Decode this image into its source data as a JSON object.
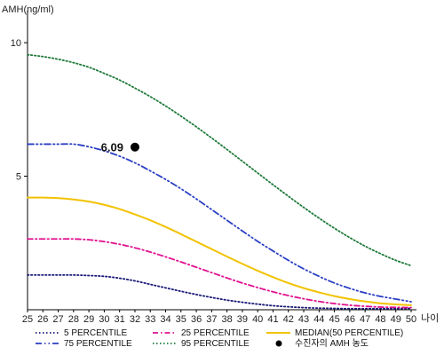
{
  "chart_data": {
    "type": "line",
    "ylabel": "AMH(ng/ml)",
    "xlabel": "나이",
    "xlim": [
      25,
      50
    ],
    "ylim": [
      0,
      11
    ],
    "x_ticks": [
      25,
      26,
      27,
      28,
      29,
      30,
      31,
      32,
      33,
      34,
      35,
      36,
      37,
      38,
      39,
      40,
      41,
      42,
      43,
      44,
      45,
      46,
      47,
      48,
      49,
      50
    ],
    "y_ticks": [
      5,
      10
    ],
    "grid": false,
    "legend_position": "bottom",
    "series": [
      {
        "name": "5 PERCENTILE",
        "color": "#1a1a7a",
        "style": "dotted",
        "x": [
          25,
          26,
          27,
          28,
          29,
          30,
          31,
          32,
          33,
          34,
          35,
          36,
          37,
          38,
          39,
          40,
          41,
          42,
          43,
          44,
          45,
          46,
          47,
          48,
          49,
          50
        ],
        "values": [
          1.3,
          1.3,
          1.3,
          1.3,
          1.28,
          1.25,
          1.18,
          1.08,
          0.95,
          0.82,
          0.69,
          0.57,
          0.46,
          0.36,
          0.28,
          0.21,
          0.15,
          0.11,
          0.08,
          0.06,
          0.05,
          0.04,
          0.04,
          0.04,
          0.04,
          0.05
        ]
      },
      {
        "name": "75 PERCENTILE",
        "color": "#2b3fc4",
        "style": "dashdotdot",
        "x": [
          25,
          26,
          27,
          28,
          29,
          30,
          31,
          32,
          33,
          34,
          35,
          36,
          37,
          38,
          39,
          40,
          41,
          42,
          43,
          44,
          45,
          46,
          47,
          48,
          49,
          50
        ],
        "values": [
          6.2,
          6.2,
          6.2,
          6.2,
          6.1,
          5.95,
          5.75,
          5.5,
          5.2,
          4.88,
          4.53,
          4.15,
          3.75,
          3.35,
          2.95,
          2.56,
          2.2,
          1.85,
          1.53,
          1.25,
          1.0,
          0.8,
          0.63,
          0.5,
          0.4,
          0.3
        ]
      },
      {
        "name": "25 PERCENTILE",
        "color": "#e0118f",
        "style": "dashdot",
        "x": [
          25,
          26,
          27,
          28,
          29,
          30,
          31,
          32,
          33,
          34,
          35,
          36,
          37,
          38,
          39,
          40,
          41,
          42,
          43,
          44,
          45,
          46,
          47,
          48,
          49,
          50
        ],
        "values": [
          2.65,
          2.65,
          2.65,
          2.65,
          2.62,
          2.55,
          2.45,
          2.32,
          2.16,
          1.98,
          1.79,
          1.59,
          1.39,
          1.19,
          1.0,
          0.83,
          0.67,
          0.53,
          0.41,
          0.31,
          0.23,
          0.17,
          0.13,
          0.1,
          0.09,
          0.08
        ]
      },
      {
        "name": "95 PERCENTILE",
        "color": "#1f7a3a",
        "style": "dotted",
        "x": [
          25,
          26,
          27,
          28,
          29,
          30,
          31,
          32,
          33,
          34,
          35,
          36,
          37,
          38,
          39,
          40,
          41,
          42,
          43,
          44,
          45,
          46,
          47,
          48,
          49,
          50
        ],
        "values": [
          9.55,
          9.48,
          9.38,
          9.25,
          9.08,
          8.85,
          8.6,
          8.3,
          7.98,
          7.63,
          7.25,
          6.85,
          6.43,
          6.0,
          5.56,
          5.12,
          4.68,
          4.25,
          3.83,
          3.43,
          3.05,
          2.7,
          2.38,
          2.1,
          1.85,
          1.65
        ]
      },
      {
        "name": "MEDIAN(50 PERCENTILE)",
        "color": "#f2c200",
        "style": "solid",
        "x": [
          25,
          26,
          27,
          28,
          29,
          30,
          31,
          32,
          33,
          34,
          35,
          36,
          37,
          38,
          39,
          40,
          41,
          42,
          43,
          44,
          45,
          46,
          47,
          48,
          49,
          50
        ],
        "values": [
          4.2,
          4.2,
          4.18,
          4.13,
          4.05,
          3.93,
          3.77,
          3.57,
          3.35,
          3.1,
          2.83,
          2.55,
          2.27,
          1.99,
          1.72,
          1.46,
          1.22,
          1.0,
          0.81,
          0.65,
          0.51,
          0.4,
          0.31,
          0.24,
          0.2,
          0.17
        ]
      }
    ],
    "points": [
      {
        "name": "수진자의 AMH 농도",
        "x": 32,
        "y": 6.09,
        "label": "6.09",
        "color": "#000000"
      }
    ]
  }
}
